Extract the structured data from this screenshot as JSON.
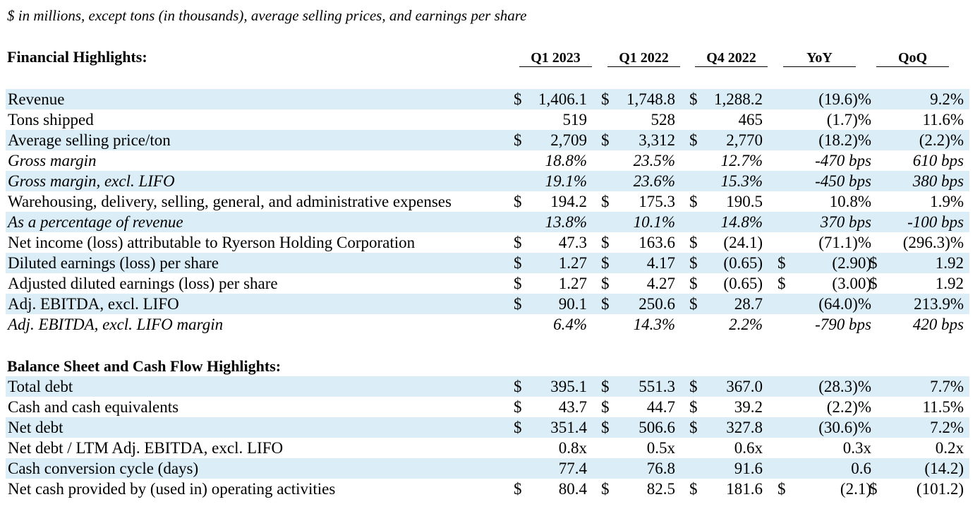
{
  "note": "$ in millions, except tons (in thousands), average selling prices, and earnings per share",
  "sections": {
    "financial_title": "Financial Highlights:",
    "balance_title": "Balance Sheet and Cash Flow Highlights:"
  },
  "columns": [
    "Q1 2023",
    "Q1 2022",
    "Q4 2022",
    "YoY",
    "QoQ"
  ],
  "financial_rows": [
    {
      "label": "Revenue",
      "d1": "$",
      "c1": "1,406.1",
      "d2": "$",
      "c2": "1,748.8",
      "d3": "$",
      "c3": "1,288.2",
      "d4": "",
      "c4": "(19.6)%",
      "d5": "",
      "c5": "9.2%"
    },
    {
      "label": "Tons shipped",
      "d1": "",
      "c1": "519",
      "d2": "",
      "c2": "528",
      "d3": "",
      "c3": "465",
      "d4": "",
      "c4": "(1.7)%",
      "d5": "",
      "c5": "11.6%"
    },
    {
      "label": "Average selling price/ton",
      "d1": "$",
      "c1": "2,709",
      "d2": "$",
      "c2": "3,312",
      "d3": "$",
      "c3": "2,770",
      "d4": "",
      "c4": "(18.2)%",
      "d5": "",
      "c5": "(2.2)%"
    },
    {
      "label": "Gross margin",
      "d1": "",
      "c1": "18.8%",
      "d2": "",
      "c2": "23.5%",
      "d3": "",
      "c3": "12.7%",
      "d4": "",
      "c4": "-470 bps",
      "d5": "",
      "c5": "610 bps"
    },
    {
      "label": "Gross margin, excl. LIFO",
      "d1": "",
      "c1": "19.1%",
      "d2": "",
      "c2": "23.6%",
      "d3": "",
      "c3": "15.3%",
      "d4": "",
      "c4": "-450 bps",
      "d5": "",
      "c5": "380 bps"
    },
    {
      "label": "Warehousing, delivery, selling, general, and administrative expenses",
      "d1": "$",
      "c1": "194.2",
      "d2": "$",
      "c2": "175.3",
      "d3": "$",
      "c3": "190.5",
      "d4": "",
      "c4": "10.8%",
      "d5": "",
      "c5": "1.9%"
    },
    {
      "label": "As a percentage of revenue",
      "d1": "",
      "c1": "13.8%",
      "d2": "",
      "c2": "10.1%",
      "d3": "",
      "c3": "14.8%",
      "d4": "",
      "c4": "370 bps",
      "d5": "",
      "c5": "-100 bps"
    },
    {
      "label": "Net income (loss) attributable to Ryerson Holding Corporation",
      "d1": "$",
      "c1": "47.3",
      "d2": "$",
      "c2": "163.6",
      "d3": "$",
      "c3": "(24.1)",
      "d4": "",
      "c4": "(71.1)%",
      "d5": "",
      "c5": "(296.3)%"
    },
    {
      "label": "Diluted earnings (loss) per share",
      "d1": "$",
      "c1": "1.27",
      "d2": "$",
      "c2": "4.17",
      "d3": "$",
      "c3": "(0.65)",
      "d4": "$",
      "c4": "(2.90)",
      "d5": "$",
      "c5": "1.92"
    },
    {
      "label": "Adjusted diluted earnings (loss) per share",
      "d1": "$",
      "c1": "1.27",
      "d2": "$",
      "c2": "4.27",
      "d3": "$",
      "c3": "(0.65)",
      "d4": "$",
      "c4": "(3.00)",
      "d5": "$",
      "c5": "1.92"
    },
    {
      "label": "Adj. EBITDA, excl. LIFO",
      "d1": "$",
      "c1": "90.1",
      "d2": "$",
      "c2": "250.6",
      "d3": "$",
      "c3": "28.7",
      "d4": "",
      "c4": "(64.0)%",
      "d5": "",
      "c5": "213.9%"
    },
    {
      "label": "Adj. EBITDA, excl. LIFO margin",
      "d1": "",
      "c1": "6.4%",
      "d2": "",
      "c2": "14.3%",
      "d3": "",
      "c3": "2.2%",
      "d4": "",
      "c4": "-790 bps",
      "d5": "",
      "c5": "420 bps"
    }
  ],
  "balance_rows": [
    {
      "label": "Total debt",
      "d1": "$",
      "c1": "395.1",
      "d2": "$",
      "c2": "551.3",
      "d3": "$",
      "c3": "367.0",
      "d4": "",
      "c4": "(28.3)%",
      "d5": "",
      "c5": "7.7%"
    },
    {
      "label": "Cash and cash equivalents",
      "d1": "$",
      "c1": "43.7",
      "d2": "$",
      "c2": "44.7",
      "d3": "$",
      "c3": "39.2",
      "d4": "",
      "c4": "(2.2)%",
      "d5": "",
      "c5": "11.5%"
    },
    {
      "label": "Net debt",
      "d1": "$",
      "c1": "351.4",
      "d2": "$",
      "c2": "506.6",
      "d3": "$",
      "c3": "327.8",
      "d4": "",
      "c4": "(30.6)%",
      "d5": "",
      "c5": "7.2%"
    },
    {
      "label": "Net debt / LTM Adj. EBITDA, excl. LIFO",
      "d1": "",
      "c1": "0.8x",
      "d2": "",
      "c2": "0.5x",
      "d3": "",
      "c3": "0.6x",
      "d4": "",
      "c4": "0.3x",
      "d5": "",
      "c5": "0.2x"
    },
    {
      "label": "Cash conversion cycle (days)",
      "d1": "",
      "c1": "77.4",
      "d2": "",
      "c2": "76.8",
      "d3": "",
      "c3": "91.6",
      "d4": "",
      "c4": "0.6",
      "d5": "",
      "c5": "(14.2)"
    },
    {
      "label": "Net cash provided by (used in) operating activities",
      "d1": "$",
      "c1": "80.4",
      "d2": "$",
      "c2": "82.5",
      "d3": "$",
      "c3": "181.6",
      "d4": "$",
      "c4": "(2.1)",
      "d5": "$",
      "c5": "(101.2)"
    }
  ],
  "colors": {
    "row_shade": "#dbeef8",
    "text": "#000000"
  }
}
